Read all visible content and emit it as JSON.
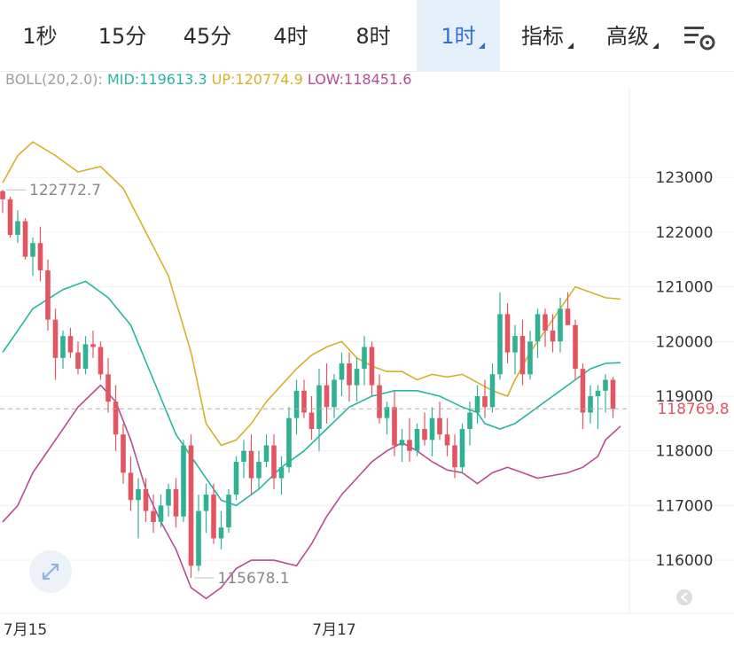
{
  "tabs": [
    {
      "label": "1秒",
      "active": false,
      "dropdown": false
    },
    {
      "label": "15分",
      "active": false,
      "dropdown": false
    },
    {
      "label": "45分",
      "active": false,
      "dropdown": false
    },
    {
      "label": "4时",
      "active": false,
      "dropdown": false
    },
    {
      "label": "8时",
      "active": false,
      "dropdown": false
    },
    {
      "label": "1时",
      "active": true,
      "dropdown": true
    },
    {
      "label": "指标",
      "active": false,
      "dropdown": true
    },
    {
      "label": "高级",
      "active": false,
      "dropdown": true
    }
  ],
  "settings_icon": "settings-icon",
  "indicator": {
    "label": "BOLL(20,2.0):",
    "mid": "MID:119613.3",
    "up": "UP:120774.9",
    "low": "LOW:118451.6",
    "colors": {
      "label": "#9e9e9e",
      "mid": "#26b5a2",
      "up": "#d4b227",
      "low": "#b44d92"
    }
  },
  "chart_data": {
    "type": "candlestick",
    "ylim": [
      115200,
      124200
    ],
    "yticks": [
      123000,
      122000,
      121000,
      120000,
      119000,
      118000,
      117000,
      116000
    ],
    "xticks": [
      {
        "label": "7月15",
        "index": 3
      },
      {
        "label": "7月17",
        "index": 44
      }
    ],
    "current_price": {
      "value": 118769.8,
      "label": "118769.8"
    },
    "high_marker": {
      "value": 122772.7,
      "label": "122772.7",
      "index": 0
    },
    "low_marker": {
      "value": 115678.1,
      "label": "115678.1",
      "index": 25
    },
    "colors": {
      "up": "#31b193",
      "down": "#e15660",
      "mid": "#26b5a2",
      "upper": "#d4b227",
      "lower": "#b44d92"
    },
    "candles": [
      [
        122750,
        122772.7,
        122350,
        122600
      ],
      [
        122600,
        122650,
        121900,
        121950
      ],
      [
        121950,
        122400,
        121800,
        122200
      ],
      [
        122200,
        122250,
        121500,
        121550
      ],
      [
        121550,
        121900,
        121200,
        121800
      ],
      [
        121800,
        122100,
        121100,
        121300
      ],
      [
        121300,
        121500,
        120200,
        120400
      ],
      [
        120400,
        120600,
        119300,
        119700
      ],
      [
        119700,
        120200,
        119500,
        120100
      ],
      [
        120100,
        120250,
        119700,
        119800
      ],
      [
        119800,
        120000,
        119400,
        119500
      ],
      [
        119500,
        120100,
        119400,
        119950
      ],
      [
        119950,
        120200,
        119700,
        119900
      ],
      [
        119900,
        120000,
        119300,
        119400
      ],
      [
        119400,
        119700,
        118700,
        118900
      ],
      [
        118900,
        119200,
        118000,
        118300
      ],
      [
        118300,
        118500,
        117400,
        117600
      ],
      [
        117600,
        117900,
        116900,
        117100
      ],
      [
        117100,
        117500,
        116400,
        117300
      ],
      [
        117300,
        117500,
        116700,
        116900
      ],
      [
        116900,
        117200,
        116500,
        116700
      ],
      [
        116700,
        117200,
        116600,
        117000
      ],
      [
        117000,
        117400,
        116800,
        117300
      ],
      [
        117300,
        117500,
        116600,
        116800
      ],
      [
        116800,
        118200,
        116700,
        118100
      ],
      [
        118100,
        118300,
        115678.1,
        115900
      ],
      [
        115900,
        117200,
        115800,
        116900
      ],
      [
        116900,
        117400,
        116500,
        117200
      ],
      [
        117200,
        117400,
        116300,
        116400
      ],
      [
        116400,
        116900,
        116200,
        116600
      ],
      [
        116600,
        117300,
        116500,
        117200
      ],
      [
        117200,
        117900,
        117100,
        117800
      ],
      [
        117800,
        118200,
        117500,
        118000
      ],
      [
        118000,
        118300,
        117200,
        117500
      ],
      [
        117500,
        118000,
        117300,
        117800
      ],
      [
        117800,
        118300,
        117700,
        118100
      ],
      [
        118100,
        118300,
        117300,
        117500
      ],
      [
        117500,
        117900,
        117200,
        117700
      ],
      [
        117700,
        118800,
        117600,
        118600
      ],
      [
        118600,
        119300,
        118300,
        119100
      ],
      [
        119100,
        119300,
        118600,
        118700
      ],
      [
        118700,
        119000,
        118200,
        118400
      ],
      [
        118400,
        119500,
        118000,
        119200
      ],
      [
        119200,
        119600,
        118500,
        118800
      ],
      [
        118800,
        119400,
        118600,
        119300
      ],
      [
        119300,
        119800,
        119000,
        119600
      ],
      [
        119600,
        119800,
        118900,
        119200
      ],
      [
        119200,
        119700,
        118900,
        119500
      ],
      [
        119500,
        120100,
        119200,
        119900
      ],
      [
        119900,
        120000,
        119000,
        119200
      ],
      [
        119200,
        119400,
        118500,
        118600
      ],
      [
        118600,
        118900,
        118300,
        118800
      ],
      [
        118800,
        119100,
        117900,
        118100
      ],
      [
        118100,
        118400,
        117800,
        118200
      ],
      [
        118200,
        118600,
        117800,
        118000
      ],
      [
        118000,
        118500,
        117900,
        118400
      ],
      [
        118400,
        118700,
        118100,
        118200
      ],
      [
        118200,
        118800,
        117900,
        118600
      ],
      [
        118600,
        118900,
        118200,
        118300
      ],
      [
        118300,
        118600,
        117900,
        118100
      ],
      [
        118100,
        118300,
        117500,
        117700
      ],
      [
        117700,
        118500,
        117600,
        118400
      ],
      [
        118400,
        118900,
        118100,
        118700
      ],
      [
        118700,
        119200,
        118500,
        119000
      ],
      [
        119000,
        119300,
        118600,
        118800
      ],
      [
        118800,
        119600,
        118700,
        119400
      ],
      [
        119400,
        120900,
        119300,
        120500
      ],
      [
        120500,
        120700,
        119600,
        119800
      ],
      [
        119800,
        120300,
        119400,
        120100
      ],
      [
        120100,
        120400,
        119200,
        119400
      ],
      [
        119400,
        120200,
        119300,
        120000
      ],
      [
        120000,
        120600,
        119700,
        120500
      ],
      [
        120500,
        120600,
        119900,
        120200
      ],
      [
        120200,
        120500,
        119800,
        120000
      ],
      [
        120000,
        120800,
        119800,
        120600
      ],
      [
        120600,
        120900,
        120300,
        120300
      ],
      [
        120300,
        120400,
        119300,
        119500
      ],
      [
        119500,
        119600,
        118400,
        118700
      ],
      [
        118700,
        119200,
        118500,
        119000
      ],
      [
        119000,
        119200,
        118400,
        119100
      ],
      [
        119100,
        119400,
        118700,
        119300
      ],
      [
        119300,
        119350,
        118600,
        118770
      ]
    ],
    "mid_line": [
      [
        0,
        119800
      ],
      [
        4,
        120600
      ],
      [
        8,
        120950
      ],
      [
        11,
        121100
      ],
      [
        14,
        120800
      ],
      [
        17,
        120300
      ],
      [
        20,
        119300
      ],
      [
        23,
        118300
      ],
      [
        26,
        117700
      ],
      [
        29,
        117100
      ],
      [
        31,
        117000
      ],
      [
        34,
        117300
      ],
      [
        37,
        117700
      ],
      [
        40,
        118000
      ],
      [
        43,
        118400
      ],
      [
        46,
        118800
      ],
      [
        49,
        119000
      ],
      [
        52,
        119100
      ],
      [
        55,
        119100
      ],
      [
        58,
        119000
      ],
      [
        61,
        118800
      ],
      [
        63,
        118700
      ],
      [
        64,
        118500
      ],
      [
        66,
        118400
      ],
      [
        68,
        118500
      ],
      [
        71,
        118800
      ],
      [
        73,
        119000
      ],
      [
        76,
        119300
      ],
      [
        78,
        119500
      ],
      [
        80,
        119600
      ],
      [
        82,
        119613.3
      ]
    ],
    "upper_line": [
      [
        0,
        122900
      ],
      [
        2,
        123400
      ],
      [
        4,
        123650
      ],
      [
        7,
        123400
      ],
      [
        10,
        123100
      ],
      [
        13,
        123200
      ],
      [
        16,
        122800
      ],
      [
        19,
        122000
      ],
      [
        22,
        121200
      ],
      [
        25,
        119800
      ],
      [
        27,
        118500
      ],
      [
        29,
        118100
      ],
      [
        31,
        118200
      ],
      [
        33,
        118500
      ],
      [
        35,
        118900
      ],
      [
        37,
        119200
      ],
      [
        39,
        119500
      ],
      [
        41,
        119750
      ],
      [
        43,
        119900
      ],
      [
        45,
        120000
      ],
      [
        47,
        119700
      ],
      [
        49,
        119550
      ],
      [
        51,
        119450
      ],
      [
        53,
        119450
      ],
      [
        55,
        119300
      ],
      [
        57,
        119400
      ],
      [
        59,
        119350
      ],
      [
        61,
        119400
      ],
      [
        63,
        119250
      ],
      [
        65,
        119100
      ],
      [
        67,
        119000
      ],
      [
        68,
        119300
      ],
      [
        70,
        119800
      ],
      [
        72,
        120200
      ],
      [
        74,
        120600
      ],
      [
        76,
        121000
      ],
      [
        78,
        120900
      ],
      [
        80,
        120800
      ],
      [
        82,
        120774.9
      ]
    ],
    "lower_line": [
      [
        0,
        116700
      ],
      [
        2,
        117000
      ],
      [
        4,
        117600
      ],
      [
        7,
        118200
      ],
      [
        10,
        118800
      ],
      [
        13,
        119200
      ],
      [
        15,
        118900
      ],
      [
        17,
        118200
      ],
      [
        19,
        117300
      ],
      [
        21,
        116700
      ],
      [
        23,
        116200
      ],
      [
        25,
        115500
      ],
      [
        27,
        115300
      ],
      [
        29,
        115500
      ],
      [
        31,
        115850
      ],
      [
        33,
        116000
      ],
      [
        36,
        116000
      ],
      [
        39,
        115900
      ],
      [
        41,
        116300
      ],
      [
        43,
        116800
      ],
      [
        45,
        117200
      ],
      [
        47,
        117500
      ],
      [
        49,
        117800
      ],
      [
        51,
        118000
      ],
      [
        53,
        118150
      ],
      [
        55,
        118000
      ],
      [
        57,
        117800
      ],
      [
        59,
        117650
      ],
      [
        61,
        117600
      ],
      [
        63,
        117400
      ],
      [
        65,
        117600
      ],
      [
        67,
        117700
      ],
      [
        69,
        117600
      ],
      [
        71,
        117500
      ],
      [
        73,
        117550
      ],
      [
        75,
        117600
      ],
      [
        77,
        117700
      ],
      [
        79,
        117900
      ],
      [
        80,
        118200
      ],
      [
        82,
        118451.6
      ]
    ]
  }
}
